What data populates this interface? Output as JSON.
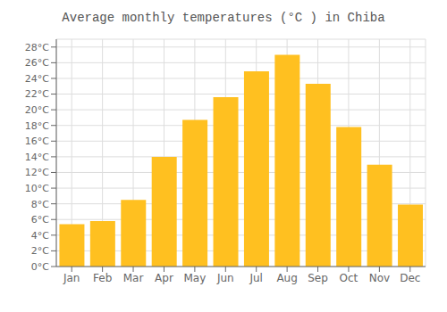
{
  "chart_data": {
    "type": "bar",
    "title": "Average monthly temperatures (°C ) in Chiba",
    "categories": [
      "Jan",
      "Feb",
      "Mar",
      "Apr",
      "May",
      "Jun",
      "Jul",
      "Aug",
      "Sep",
      "Oct",
      "Nov",
      "Dec"
    ],
    "values": [
      5.4,
      5.8,
      8.5,
      14.0,
      18.7,
      21.6,
      24.9,
      27.0,
      23.3,
      17.8,
      13.0,
      7.9
    ],
    "color": "#FFC020",
    "ylim": [
      0,
      29
    ],
    "yticks": [
      {
        "value": 0,
        "label": "0°C"
      },
      {
        "value": 2,
        "label": "2°C"
      },
      {
        "value": 4,
        "label": "4°C"
      },
      {
        "value": 6,
        "label": "6°C"
      },
      {
        "value": 8,
        "label": "8°C"
      },
      {
        "value": 10,
        "label": "10°C"
      },
      {
        "value": 12,
        "label": "12°C"
      },
      {
        "value": 14,
        "label": "14°C"
      },
      {
        "value": 16,
        "label": "16°C"
      },
      {
        "value": 18,
        "label": "18°C"
      },
      {
        "value": 20,
        "label": "20°C"
      },
      {
        "value": 22,
        "label": "22°C"
      },
      {
        "value": 24,
        "label": "24°C"
      },
      {
        "value": 26,
        "label": "26°C"
      },
      {
        "value": 28,
        "label": "28°C"
      }
    ],
    "grid": true
  }
}
